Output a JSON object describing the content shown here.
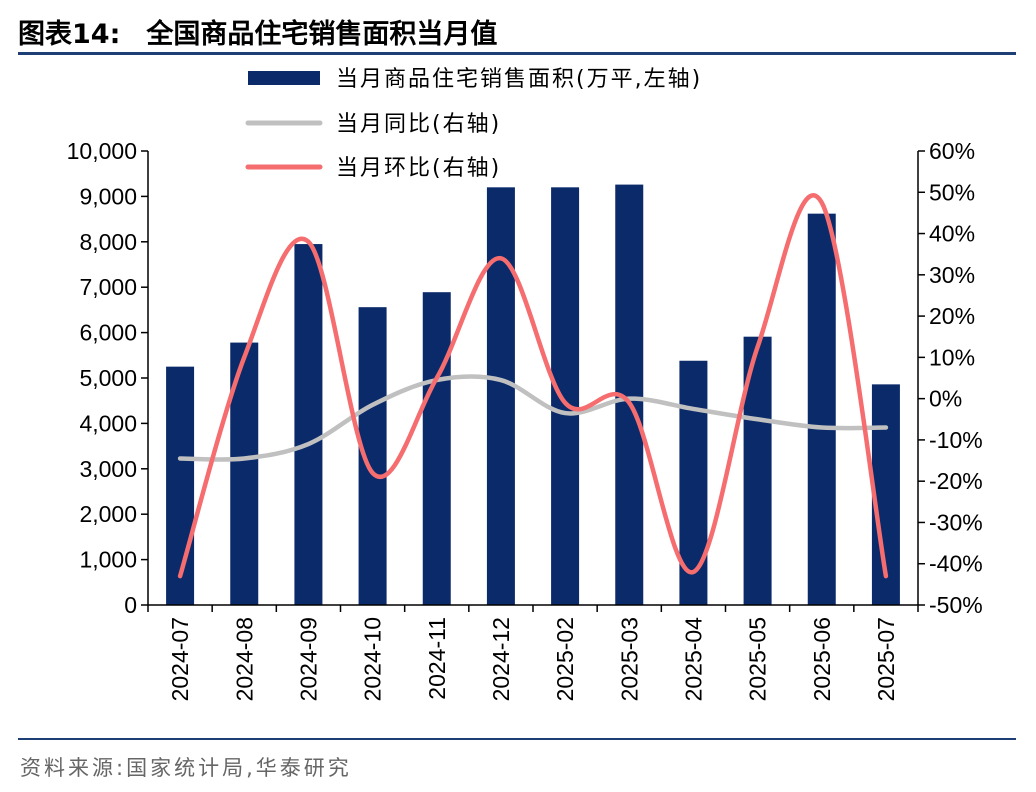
{
  "header": {
    "figure_no": "图表14:",
    "title": "全国商品住宅销售面积当月值"
  },
  "footer": {
    "source": "资料来源:国家统计局,华泰研究"
  },
  "colors": {
    "bar": "#0b2a6a",
    "yoy": "#c0c0c0",
    "mom": "#f56d6f",
    "rule": "#1d3f75"
  },
  "chart_data": {
    "type": "bar",
    "categories": [
      "2024-07",
      "2024-08",
      "2024-09",
      "2024-10",
      "2024-11",
      "2024-12",
      "2025-02",
      "2025-03",
      "2025-04",
      "2025-05",
      "2025-06",
      "2025-07"
    ],
    "y_left": {
      "min": 0,
      "max": 10000,
      "step": 1000,
      "tick_labels": [
        "0",
        "1,000",
        "2,000",
        "3,000",
        "4,000",
        "5,000",
        "6,000",
        "7,000",
        "8,000",
        "9,000",
        "10,000"
      ]
    },
    "y_right": {
      "min": -50,
      "max": 60,
      "step": 10,
      "unit": "%",
      "tick_labels": [
        "-50%",
        "-40%",
        "-30%",
        "-20%",
        "-10%",
        "0%",
        "10%",
        "20%",
        "30%",
        "40%",
        "50%",
        "60%"
      ]
    },
    "legend_position": "top",
    "grid": false,
    "series": [
      {
        "name": "当月商品住宅销售面积(万平,左轴)",
        "type": "bar",
        "axis": "left",
        "values": [
          5250,
          5780,
          7950,
          6560,
          6890,
          9200,
          9200,
          9260,
          5380,
          5910,
          8620,
          4860
        ]
      },
      {
        "name": "当月同比(右轴)",
        "type": "line",
        "axis": "right",
        "values": [
          -14.5,
          -14.5,
          -11.0,
          -1.5,
          4.5,
          4.5,
          -3.5,
          0.0,
          -2.5,
          -5.0,
          -7.0,
          -7.0
        ]
      },
      {
        "name": "当月环比(右轴)",
        "type": "line",
        "axis": "right",
        "values": [
          -43.0,
          10.0,
          38.0,
          -18.0,
          5.0,
          34.0,
          -1.0,
          -1.0,
          -42.0,
          12.5,
          47.5,
          -43.0
        ]
      }
    ]
  }
}
